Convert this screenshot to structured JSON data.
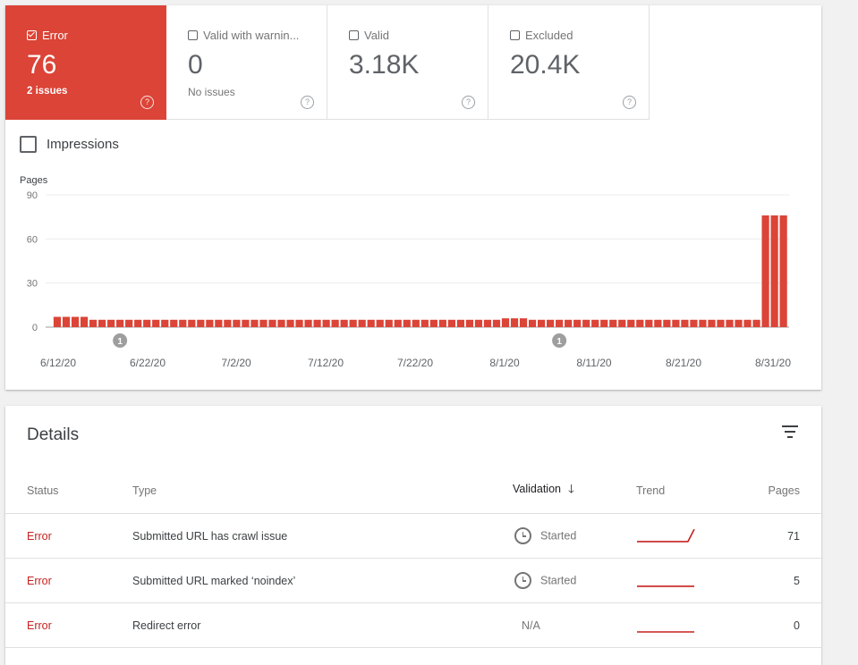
{
  "tiles": [
    {
      "label": "Error",
      "value": "76",
      "sub": "2 issues",
      "checked": true
    },
    {
      "label": "Valid with warnin...",
      "value": "0",
      "sub": "No issues",
      "checked": false
    },
    {
      "label": "Valid",
      "value": "3.18K",
      "sub": "",
      "checked": false
    },
    {
      "label": "Excluded",
      "value": "20.4K",
      "sub": "",
      "checked": false
    }
  ],
  "help_glyph": "?",
  "impressions_label": "Impressions",
  "chart_data": {
    "type": "bar",
    "ylabel": "Pages",
    "ylim": [
      0,
      90
    ],
    "yticks": [
      0,
      30,
      60,
      90
    ],
    "xtick_labels": [
      "6/12/20",
      "6/22/20",
      "7/2/20",
      "7/12/20",
      "7/22/20",
      "8/1/20",
      "8/11/20",
      "8/21/20",
      "8/31/20"
    ],
    "values": [
      7,
      7,
      7,
      7,
      5,
      5,
      5,
      5,
      5,
      5,
      5,
      5,
      5,
      5,
      5,
      5,
      5,
      5,
      5,
      5,
      5,
      5,
      5,
      5,
      5,
      5,
      5,
      5,
      5,
      5,
      5,
      5,
      5,
      5,
      5,
      5,
      5,
      5,
      5,
      5,
      5,
      5,
      5,
      5,
      5,
      5,
      5,
      5,
      5,
      5,
      6,
      6,
      6,
      5,
      5,
      5,
      5,
      5,
      5,
      5,
      5,
      5,
      5,
      5,
      5,
      5,
      5,
      5,
      5,
      5,
      5,
      5,
      5,
      5,
      5,
      5,
      5,
      5,
      5,
      76,
      76,
      76
    ],
    "annotations": [
      {
        "index": 7,
        "label": "1"
      },
      {
        "index": 56,
        "label": "1"
      }
    ],
    "color": "#db4437"
  },
  "details": {
    "title": "Details",
    "columns": [
      "Status",
      "Type",
      "Validation",
      "Trend",
      "Pages"
    ],
    "rows": [
      {
        "status": "Error",
        "type": "Submitted URL has crawl issue",
        "validation": "Started",
        "pages": "71",
        "trend": [
          5,
          5,
          5,
          5,
          5,
          5,
          5,
          5,
          5,
          71
        ]
      },
      {
        "status": "Error",
        "type": "Submitted URL marked ‘noindex’",
        "validation": "Started",
        "pages": "5",
        "trend": [
          5,
          5,
          5,
          5,
          5,
          5,
          5,
          5,
          5,
          5
        ]
      },
      {
        "status": "Error",
        "type": "Redirect error",
        "validation": "N/A",
        "pages": "0",
        "trend": [
          0,
          0,
          0,
          0,
          0,
          0,
          0,
          0,
          0,
          0
        ]
      }
    ]
  },
  "colors": {
    "error": "#db4437",
    "error_text": "#c5221f",
    "trend": "#c5221f"
  }
}
